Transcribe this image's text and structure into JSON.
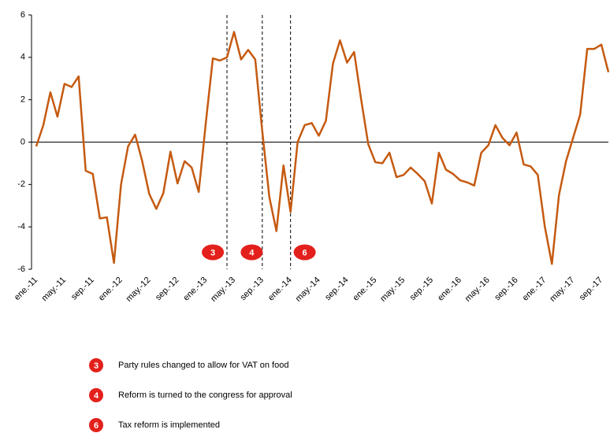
{
  "chart_data": {
    "type": "line",
    "categories": [
      "ene.-11",
      null,
      null,
      null,
      "may.-11",
      null,
      null,
      null,
      "sep.-11",
      null,
      null,
      null,
      "ene.-12",
      null,
      null,
      null,
      "may.-12",
      null,
      null,
      null,
      "sep.-12",
      null,
      null,
      null,
      "ene.-13",
      null,
      null,
      null,
      "may.-13",
      null,
      null,
      null,
      "sep.-13",
      null,
      null,
      null,
      "ene.-14",
      null,
      null,
      null,
      "may.-14",
      null,
      null,
      null,
      "sep.-14",
      null,
      null,
      null,
      "ene.-15",
      null,
      null,
      null,
      "may.-15",
      null,
      null,
      null,
      "sep.-15",
      null,
      null,
      null,
      "ene.-16",
      null,
      null,
      null,
      "may.-16",
      null,
      null,
      null,
      "sep.-16",
      null,
      null,
      null,
      "ene.-17",
      null,
      null,
      null,
      "may.-17",
      null,
      null,
      null,
      "sep.-17",
      null
    ],
    "series": [
      {
        "color": "#c55a11",
        "values": [
          -0.2,
          0.8,
          2.35,
          1.2,
          2.75,
          2.6,
          3.1,
          -1.35,
          -1.5,
          -3.6,
          -3.55,
          -5.7,
          -2.0,
          -0.2,
          0.35,
          -0.9,
          -2.45,
          -3.15,
          -2.4,
          -0.45,
          -1.95,
          -0.9,
          -1.2,
          -2.35,
          0.9,
          3.95,
          3.85,
          4.0,
          5.2,
          3.9,
          4.35,
          3.9,
          0.5,
          -2.6,
          -4.2,
          -1.1,
          -3.3,
          0.0,
          0.8,
          0.9,
          0.3,
          1.0,
          3.7,
          4.8,
          3.75,
          4.25,
          2.0,
          -0.1,
          -0.95,
          -1.0,
          -0.5,
          -1.65,
          -1.55,
          -1.2,
          -1.5,
          -1.85,
          -2.9,
          -0.5,
          -1.3,
          -1.5,
          -1.8,
          -1.9,
          -2.05,
          -0.5,
          -0.15,
          0.8,
          0.2,
          -0.15,
          0.45,
          -1.05,
          -1.15,
          -1.55,
          -4.0,
          -5.75,
          -2.5,
          -0.9,
          0.2,
          1.3,
          4.4,
          4.4,
          4.6,
          3.3
        ]
      }
    ],
    "ylim": [
      -6,
      6
    ],
    "yticks": [
      -6,
      -4,
      -2,
      0,
      2,
      4,
      6
    ],
    "event_lines": [
      27,
      32,
      36
    ],
    "events": [
      {
        "label": "3",
        "text": "Party rules changed to allow for VAT on food",
        "x": 25,
        "y": -5.2
      },
      {
        "label": "4",
        "text": "Reform is turned to the congress for approval",
        "x": 30.5,
        "y": -5.2
      },
      {
        "label": "6",
        "text": "Tax reform is implemented",
        "x": 38,
        "y": -5.2
      }
    ]
  }
}
